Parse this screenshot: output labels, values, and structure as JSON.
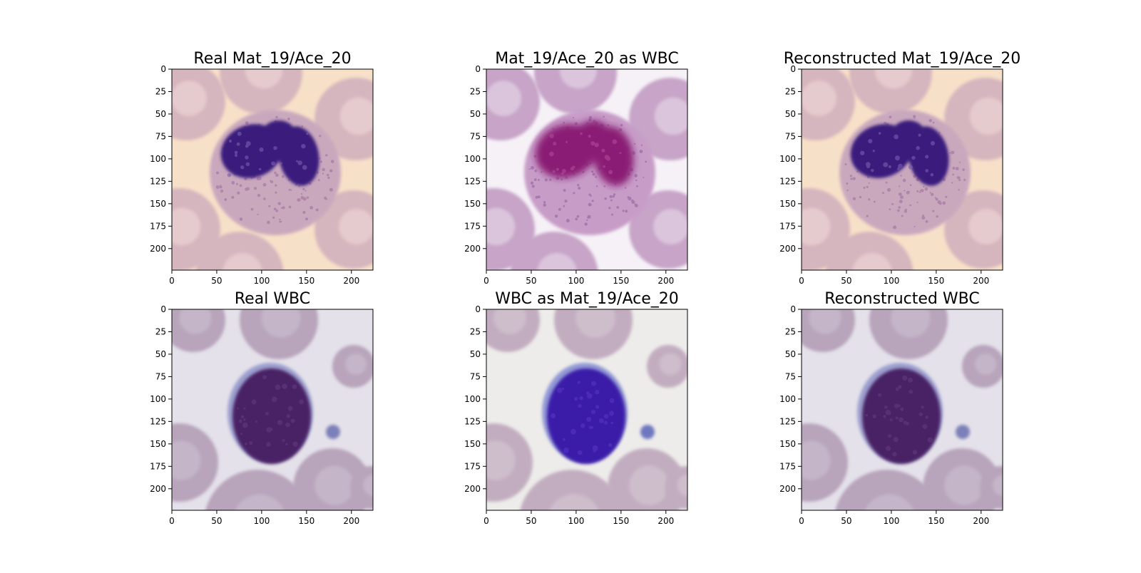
{
  "figure": {
    "panels": [
      {
        "title": "Real Mat_19/Ace_20",
        "palette": {
          "bg": "#f7e0c8",
          "rbc": "#d6b6be",
          "rbc_center": "#e8cfd2",
          "cyto": "#c9a8bd",
          "cyto_speck": "#9a6a9c",
          "nucleus": "#3b1f7d",
          "nucleus_light": "#7a5fb0"
        },
        "subject": "neutrophil"
      },
      {
        "title": "Mat_19/Ace_20 as WBC",
        "palette": {
          "bg": "#f6f1f7",
          "rbc": "#c7a4c8",
          "rbc_center": "#e0cde2",
          "cyto": "#c79dc8",
          "cyto_speck": "#8f5c9a",
          "nucleus": "#8a1f74",
          "nucleus_light": "#b04a96"
        },
        "subject": "neutrophil"
      },
      {
        "title": "Reconstructed Mat_19/Ace_20",
        "palette": {
          "bg": "#f7e0c8",
          "rbc": "#d6b6be",
          "rbc_center": "#e8cfd2",
          "cyto": "#c9a8bd",
          "cyto_speck": "#9a6a9c",
          "nucleus": "#3b1f7d",
          "nucleus_light": "#7a5fb0"
        },
        "subject": "neutrophil"
      },
      {
        "title": "Real WBC",
        "palette": {
          "bg": "#e4e1ea",
          "rbc": "#b8a4bb",
          "rbc_center": "#cbbccd",
          "cyto": "#8a8fc8",
          "cyto_speck": "#6a6fb0",
          "nucleus": "#4a2465",
          "nucleus_light": "#6b3f88"
        },
        "subject": "lymphocyte"
      },
      {
        "title": "WBC as Mat_19/Ace_20",
        "palette": {
          "bg": "#edecea",
          "rbc": "#c2adc0",
          "rbc_center": "#d3c5d2",
          "cyto": "#7a84d0",
          "cyto_speck": "#5a64b8",
          "nucleus": "#3a1aa8",
          "nucleus_light": "#5f3bd0"
        },
        "subject": "lymphocyte"
      },
      {
        "title": "Reconstructed WBC",
        "palette": {
          "bg": "#e4e1ea",
          "rbc": "#b8a4bb",
          "rbc_center": "#cbbccd",
          "cyto": "#8a8fc8",
          "cyto_speck": "#6a6fb0",
          "nucleus": "#4a2465",
          "nucleus_light": "#6b3f88"
        },
        "subject": "lymphocyte"
      }
    ],
    "x_ticks": [
      "0",
      "50",
      "100",
      "150",
      "200"
    ],
    "y_ticks": [
      "0",
      "25",
      "50",
      "75",
      "100",
      "125",
      "150",
      "175",
      "200"
    ],
    "axis_range": [
      0,
      224
    ]
  }
}
